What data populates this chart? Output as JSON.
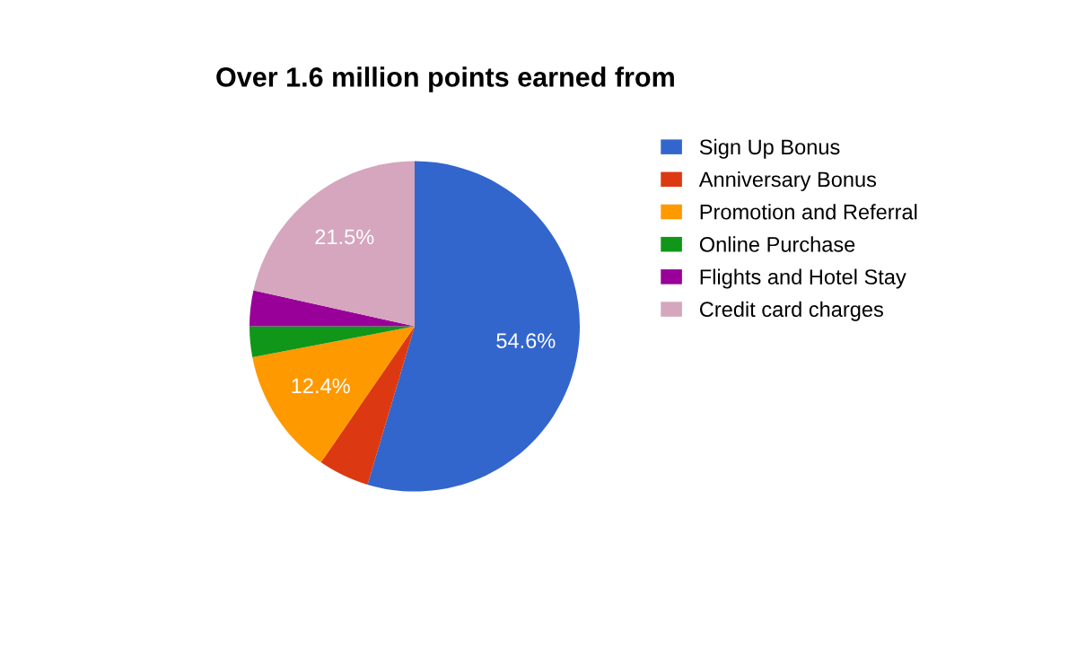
{
  "chart_data": {
    "type": "pie",
    "title": "Over 1.6 million points earned from",
    "categories": [
      "Sign Up Bonus",
      "Anniversary Bonus",
      "Promotion and Referral",
      "Online Purchase",
      "Flights and Hotel Stay",
      "Credit card charges"
    ],
    "values": [
      54.6,
      5.0,
      12.4,
      3.0,
      3.5,
      21.5
    ],
    "colors": [
      "#3366cc",
      "#dc3912",
      "#ff9900",
      "#109618",
      "#990099",
      "#d5a6bd"
    ],
    "value_labels": [
      "54.6%",
      null,
      "12.4%",
      null,
      null,
      "21.5%"
    ],
    "legend": "right"
  }
}
